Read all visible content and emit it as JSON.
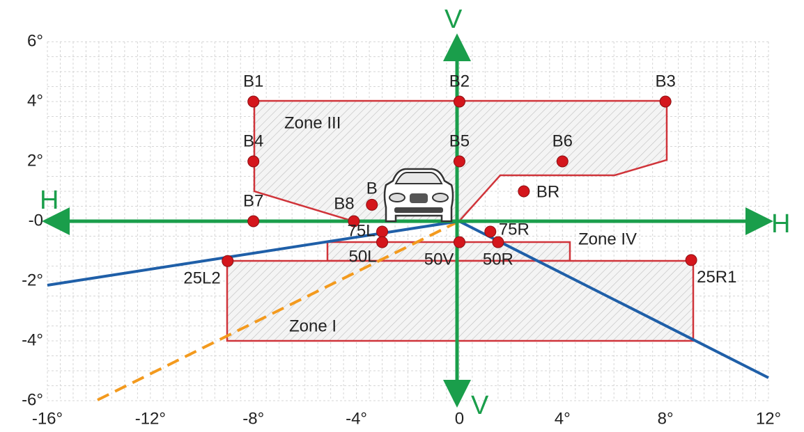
{
  "axes": {
    "x_ticks": [
      "-16°",
      "-12°",
      "-8°",
      "-4°",
      "0",
      "4°",
      "8°",
      "12°"
    ],
    "y_ticks": [
      "6°",
      "4°",
      "2°",
      "-0",
      "-2°",
      "-4°",
      "-6°"
    ],
    "h_label": "H",
    "v_label": "V"
  },
  "points": [
    {
      "label": "B1"
    },
    {
      "label": "B2"
    },
    {
      "label": "B3"
    },
    {
      "label": "B4"
    },
    {
      "label": "B5"
    },
    {
      "label": "B6"
    },
    {
      "label": "BR"
    },
    {
      "label": "B7"
    },
    {
      "label": "B8"
    },
    {
      "label": "B"
    },
    {
      "label": "75L"
    },
    {
      "label": "50L"
    },
    {
      "label": "50V"
    },
    {
      "label": "75R"
    },
    {
      "label": "50R"
    },
    {
      "label": "25L2"
    },
    {
      "label": "25R1"
    }
  ],
  "zones": [
    "Zone III",
    "Zone IV",
    "Zone I"
  ]
}
